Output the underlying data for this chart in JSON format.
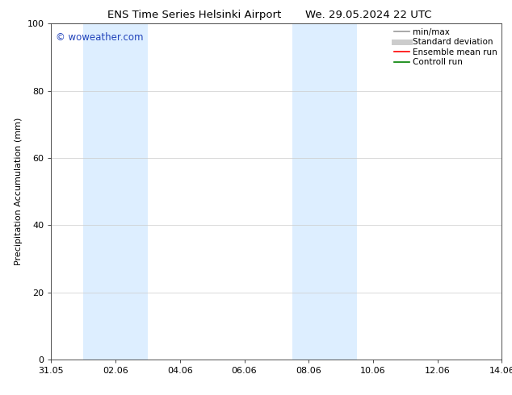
{
  "title_left": "ENS Time Series Helsinki Airport",
  "title_right": "We. 29.05.2024 22 UTC",
  "ylabel": "Precipitation Accumulation (mm)",
  "ylim": [
    0,
    100
  ],
  "yticks": [
    0,
    20,
    40,
    60,
    80,
    100
  ],
  "x_tick_labels": [
    "31.05",
    "02.06",
    "04.06",
    "06.06",
    "08.06",
    "10.06",
    "12.06",
    "14.06"
  ],
  "x_tick_positions": [
    0,
    2,
    4,
    6,
    8,
    10,
    12,
    14
  ],
  "shaded_regions": [
    {
      "x_start": 1.0,
      "x_end": 3.0,
      "color": "#ddeeff",
      "alpha": 1.0
    },
    {
      "x_start": 7.5,
      "x_end": 9.5,
      "color": "#ddeeff",
      "alpha": 1.0
    }
  ],
  "watermark_text": "© woweather.com",
  "watermark_color": "#2244bb",
  "legend_entries": [
    {
      "label": "min/max",
      "color": "#999999",
      "linewidth": 1.2,
      "linestyle": "-"
    },
    {
      "label": "Standard deviation",
      "color": "#cccccc",
      "linewidth": 5,
      "linestyle": "-"
    },
    {
      "label": "Ensemble mean run",
      "color": "#ff0000",
      "linewidth": 1.2,
      "linestyle": "-"
    },
    {
      "label": "Controll run",
      "color": "#008000",
      "linewidth": 1.2,
      "linestyle": "-"
    }
  ],
  "background_color": "#ffffff",
  "grid_color": "#cccccc",
  "title_fontsize": 9.5,
  "ylabel_fontsize": 8,
  "tick_fontsize": 8,
  "legend_fontsize": 7.5,
  "watermark_fontsize": 8.5
}
